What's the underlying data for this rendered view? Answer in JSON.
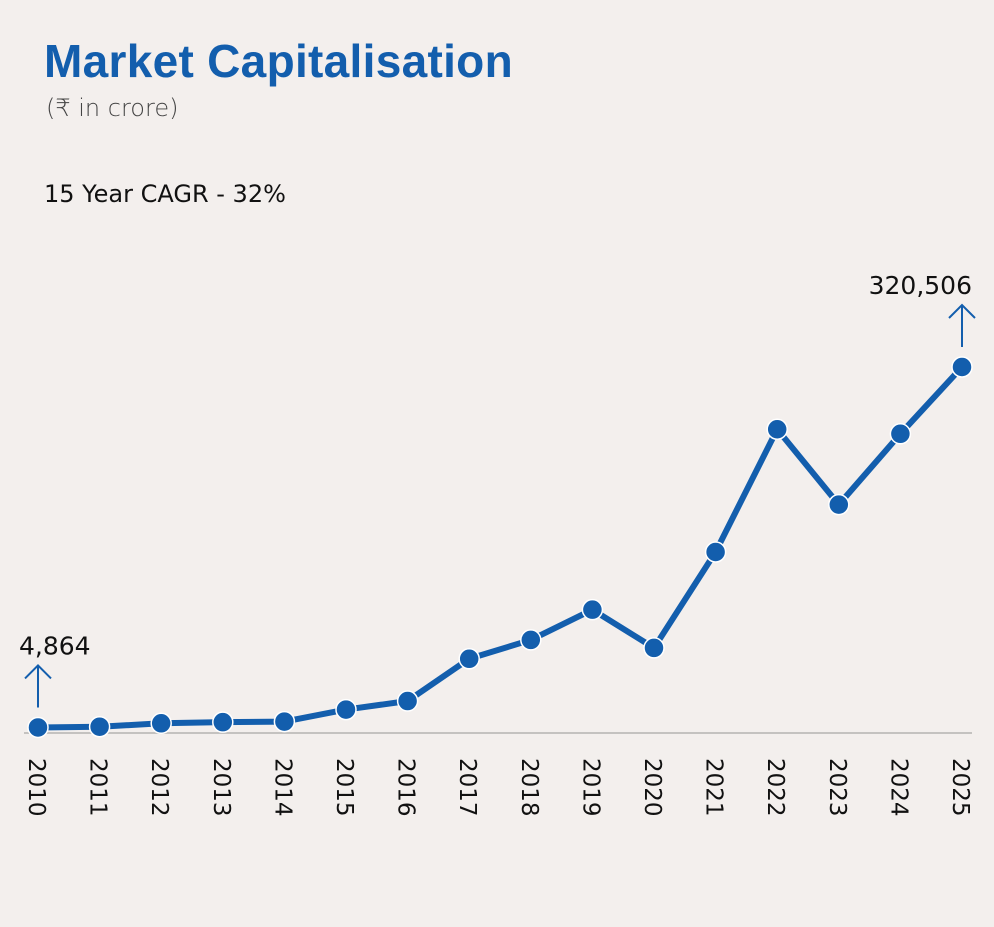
{
  "header": {
    "title": "Market Capitalisation",
    "subtitle": "(₹ in crore)",
    "note": "15 Year CAGR - 32%"
  },
  "colors": {
    "accent": "#135ead",
    "baseline": "#c4c2c0",
    "background": "#f3efed"
  },
  "chart_data": {
    "type": "line",
    "title": "Market Capitalisation",
    "subtitle": "(₹ in crore)",
    "annotation": "15 Year CAGR - 32%",
    "xlabel": "",
    "ylabel": "",
    "categories": [
      "2010",
      "2011",
      "2012",
      "2013",
      "2014",
      "2015",
      "2016",
      "2017",
      "2018",
      "2019",
      "2020",
      "2021",
      "2022",
      "2023",
      "2024",
      "2025"
    ],
    "series": [
      {
        "name": "Market Capitalisation",
        "values": [
          4864,
          5500,
          8500,
          9500,
          10000,
          20500,
          28000,
          65000,
          81500,
          108000,
          74500,
          158500,
          266000,
          200000,
          262000,
          320506
        ]
      }
    ],
    "labels": [
      {
        "category": "2010",
        "text": "4,864"
      },
      {
        "category": "2025",
        "text": "320,506"
      }
    ],
    "ylim": [
      0,
      320506
    ],
    "grid": false,
    "legend": "none",
    "x_tick_rotation": "vertical"
  }
}
